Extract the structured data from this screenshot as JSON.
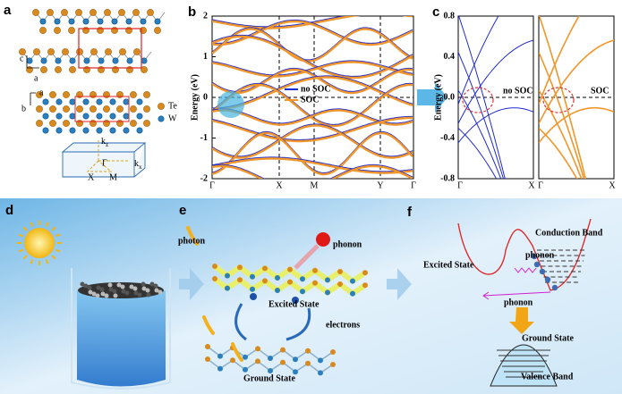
{
  "panels": {
    "a": {
      "label": "a",
      "axes": [
        "c",
        "a",
        "a",
        "b"
      ],
      "legend": [
        "Te",
        "W"
      ],
      "bz": {
        "kz": {
          "base": "k",
          "sub": "z"
        },
        "kx": {
          "base": "k",
          "sub": "x"
        },
        "points": [
          "X",
          "M",
          "Γ"
        ]
      }
    },
    "b": {
      "label": "b",
      "ylabel": "Energy (eV)",
      "yticks": [
        "2",
        "1",
        "0",
        "-1",
        "-2"
      ],
      "xticks": [
        "Γ",
        "X",
        "M",
        "Y",
        "Γ"
      ],
      "legend": [
        "no SOC",
        "SOC"
      ]
    },
    "c": {
      "label": "c",
      "ylabel": "Energy (eV)",
      "yticks": [
        "0.8",
        "0.4",
        "0.0",
        "-0.4",
        "-0.8"
      ],
      "left_xticks": [
        "Γ",
        "X"
      ],
      "right_xticks": [
        "Γ",
        "X"
      ],
      "left_note": "no SOC",
      "right_note": "SOC"
    },
    "d": {
      "label": "d"
    },
    "e": {
      "label": "e",
      "photon": "photon",
      "phonon": "phonon",
      "excited": "Excited State",
      "electrons": "electrons",
      "ground": "Ground State"
    },
    "f": {
      "label": "f",
      "conduction": "Conduction Band",
      "phonon_top": "phonon",
      "excited": "Excited State",
      "phonon_bottom": "phonon",
      "ground": "Ground State",
      "valence": "Valence Band"
    }
  }
}
